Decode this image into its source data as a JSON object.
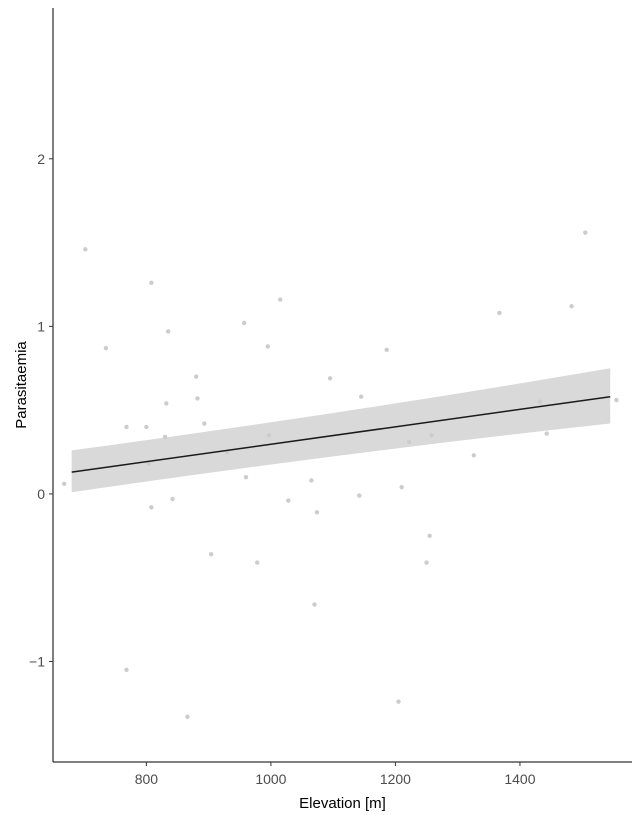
{
  "chart_data": {
    "type": "scatter",
    "title": "",
    "xlabel": "Elevation [m]",
    "ylabel": "Parasitaemia",
    "xlim": [
      650,
      1580
    ],
    "ylim": [
      -1.6,
      2.9
    ],
    "x_ticks": [
      {
        "value": 800,
        "label": "800"
      },
      {
        "value": 1000,
        "label": "1000"
      },
      {
        "value": 1200,
        "label": "1200"
      },
      {
        "value": 1400,
        "label": "1400"
      }
    ],
    "y_ticks": [
      {
        "value": -1,
        "label": "−1"
      },
      {
        "value": 0,
        "label": "0"
      },
      {
        "value": 1,
        "label": "1"
      },
      {
        "value": 2,
        "label": "2"
      }
    ],
    "grid": false,
    "point_color": "#cccccc",
    "line_color": "#1a1a1a",
    "band_color": "#d9d9d9",
    "points": [
      {
        "x": 668,
        "y": 0.06
      },
      {
        "x": 702,
        "y": 1.46
      },
      {
        "x": 735,
        "y": 0.87
      },
      {
        "x": 768,
        "y": 0.4
      },
      {
        "x": 768,
        "y": -1.05
      },
      {
        "x": 800,
        "y": 0.4
      },
      {
        "x": 804,
        "y": 0.18
      },
      {
        "x": 808,
        "y": 1.26
      },
      {
        "x": 808,
        "y": -0.08
      },
      {
        "x": 830,
        "y": 0.34
      },
      {
        "x": 832,
        "y": 0.54
      },
      {
        "x": 835,
        "y": 0.97
      },
      {
        "x": 842,
        "y": -0.03
      },
      {
        "x": 866,
        "y": -1.33
      },
      {
        "x": 880,
        "y": 0.7
      },
      {
        "x": 882,
        "y": 0.57
      },
      {
        "x": 893,
        "y": 0.42
      },
      {
        "x": 904,
        "y": -0.36
      },
      {
        "x": 930,
        "y": 0.25
      },
      {
        "x": 957,
        "y": 1.02
      },
      {
        "x": 960,
        "y": 0.1
      },
      {
        "x": 978,
        "y": -0.41
      },
      {
        "x": 995,
        "y": 0.88
      },
      {
        "x": 997,
        "y": 0.35
      },
      {
        "x": 1015,
        "y": 1.16
      },
      {
        "x": 1028,
        "y": -0.04
      },
      {
        "x": 1065,
        "y": 0.08
      },
      {
        "x": 1070,
        "y": -0.66
      },
      {
        "x": 1074,
        "y": -0.11
      },
      {
        "x": 1095,
        "y": 0.69
      },
      {
        "x": 1142,
        "y": -0.01
      },
      {
        "x": 1145,
        "y": 0.58
      },
      {
        "x": 1186,
        "y": 0.86
      },
      {
        "x": 1205,
        "y": -1.24
      },
      {
        "x": 1210,
        "y": 0.04
      },
      {
        "x": 1222,
        "y": 0.31
      },
      {
        "x": 1250,
        "y": -0.41
      },
      {
        "x": 1255,
        "y": -0.25
      },
      {
        "x": 1258,
        "y": 0.35
      },
      {
        "x": 1326,
        "y": 0.23
      },
      {
        "x": 1367,
        "y": 1.08
      },
      {
        "x": 1432,
        "y": 0.55
      },
      {
        "x": 1443,
        "y": 0.36
      },
      {
        "x": 1483,
        "y": 1.12
      },
      {
        "x": 1505,
        "y": 1.56
      },
      {
        "x": 1555,
        "y": 0.56
      }
    ],
    "fit": {
      "x": [
        680,
        1545
      ],
      "y": [
        0.13,
        0.58
      ],
      "lower": [
        0.01,
        0.42
      ],
      "upper": [
        0.26,
        0.75
      ]
    }
  }
}
